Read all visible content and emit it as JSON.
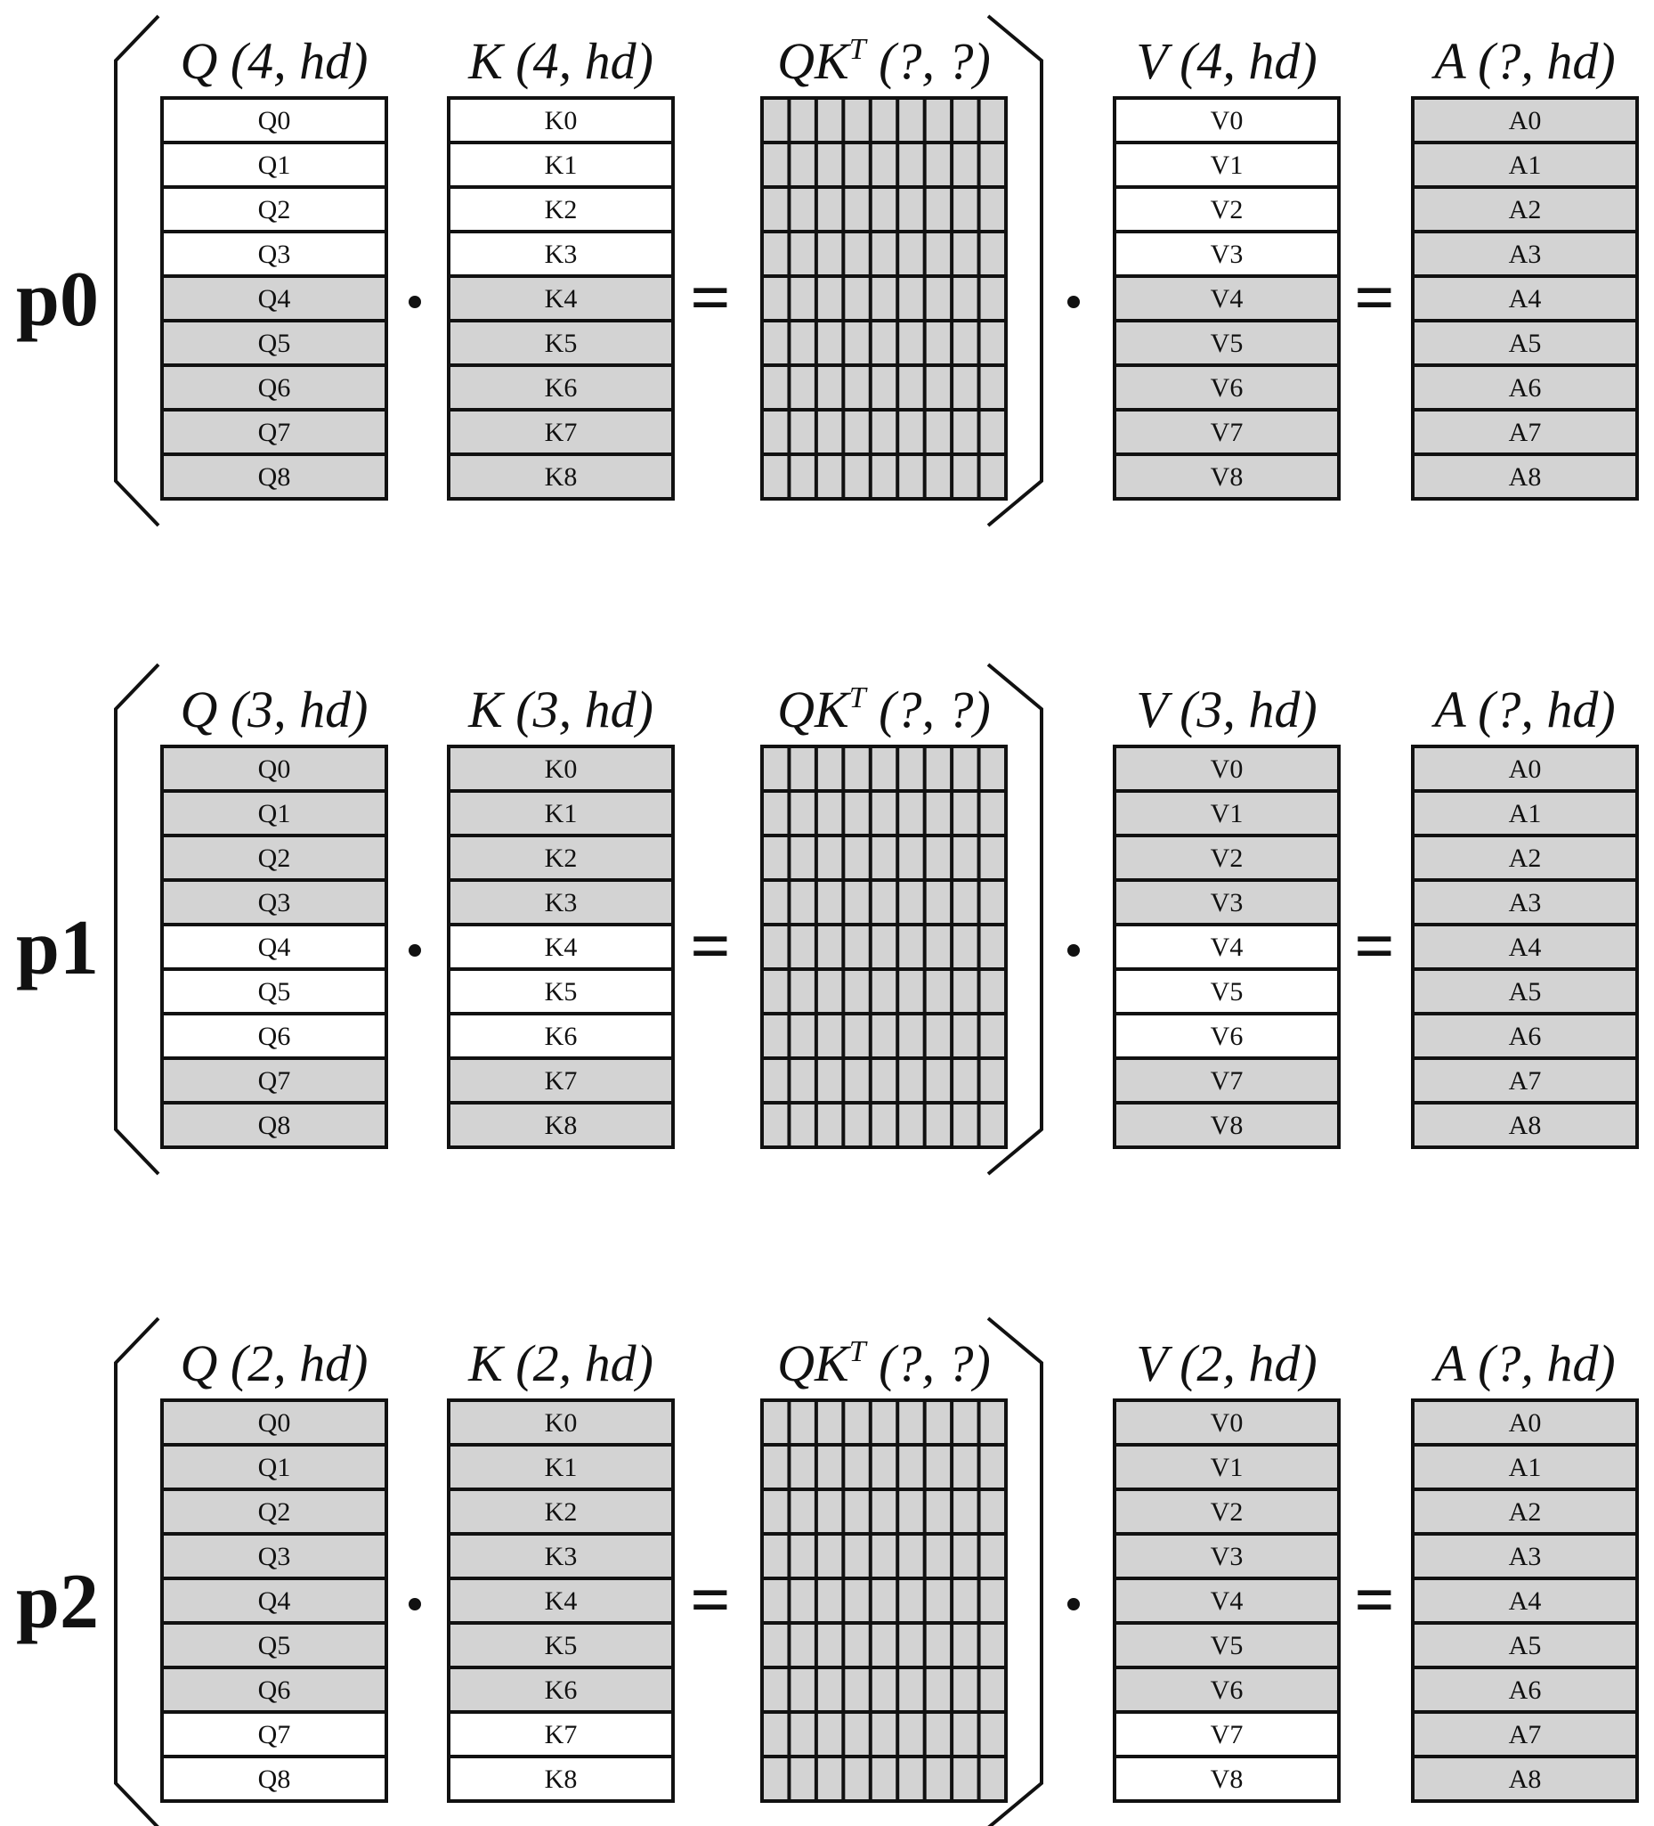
{
  "colors": {
    "shaded": "#d3d3d3",
    "unshaded": "#ffffff",
    "stroke": "#111111"
  },
  "panels": [
    {
      "label": "p0",
      "headers": {
        "q": "Q (4, hd)",
        "k": "K (4, hd)",
        "qkt_base": "QK",
        "qkt_sup": "T",
        "qkt_rest": " (?, ?)",
        "v": "V (4, hd)",
        "a": "A (?, hd)"
      },
      "rows": [
        "0",
        "1",
        "2",
        "3",
        "4",
        "5",
        "6",
        "7",
        "8"
      ],
      "highlighted_rows": [
        0,
        1,
        2,
        3
      ],
      "dot": "•",
      "equals": "="
    },
    {
      "label": "p1",
      "headers": {
        "q": "Q (3, hd)",
        "k": "K (3, hd)",
        "qkt_base": "QK",
        "qkt_sup": "T",
        "qkt_rest": " (?, ?)",
        "v": "V (3, hd)",
        "a": "A (?, hd)"
      },
      "rows": [
        "0",
        "1",
        "2",
        "3",
        "4",
        "5",
        "6",
        "7",
        "8"
      ],
      "highlighted_rows": [
        4,
        5,
        6
      ],
      "dot": "•",
      "equals": "="
    },
    {
      "label": "p2",
      "headers": {
        "q": "Q (2, hd)",
        "k": "K (2, hd)",
        "qkt_base": "QK",
        "qkt_sup": "T",
        "qkt_rest": " (?, ?)",
        "v": "V (2, hd)",
        "a": "A (?, hd)"
      },
      "rows": [
        "0",
        "1",
        "2",
        "3",
        "4",
        "5",
        "6",
        "7",
        "8"
      ],
      "highlighted_rows": [
        7,
        8
      ],
      "dot": "•",
      "equals": "="
    }
  ],
  "matrix_prefixes": [
    "Q",
    "K",
    "V",
    "A"
  ],
  "qkt_grid_columns": 9
}
